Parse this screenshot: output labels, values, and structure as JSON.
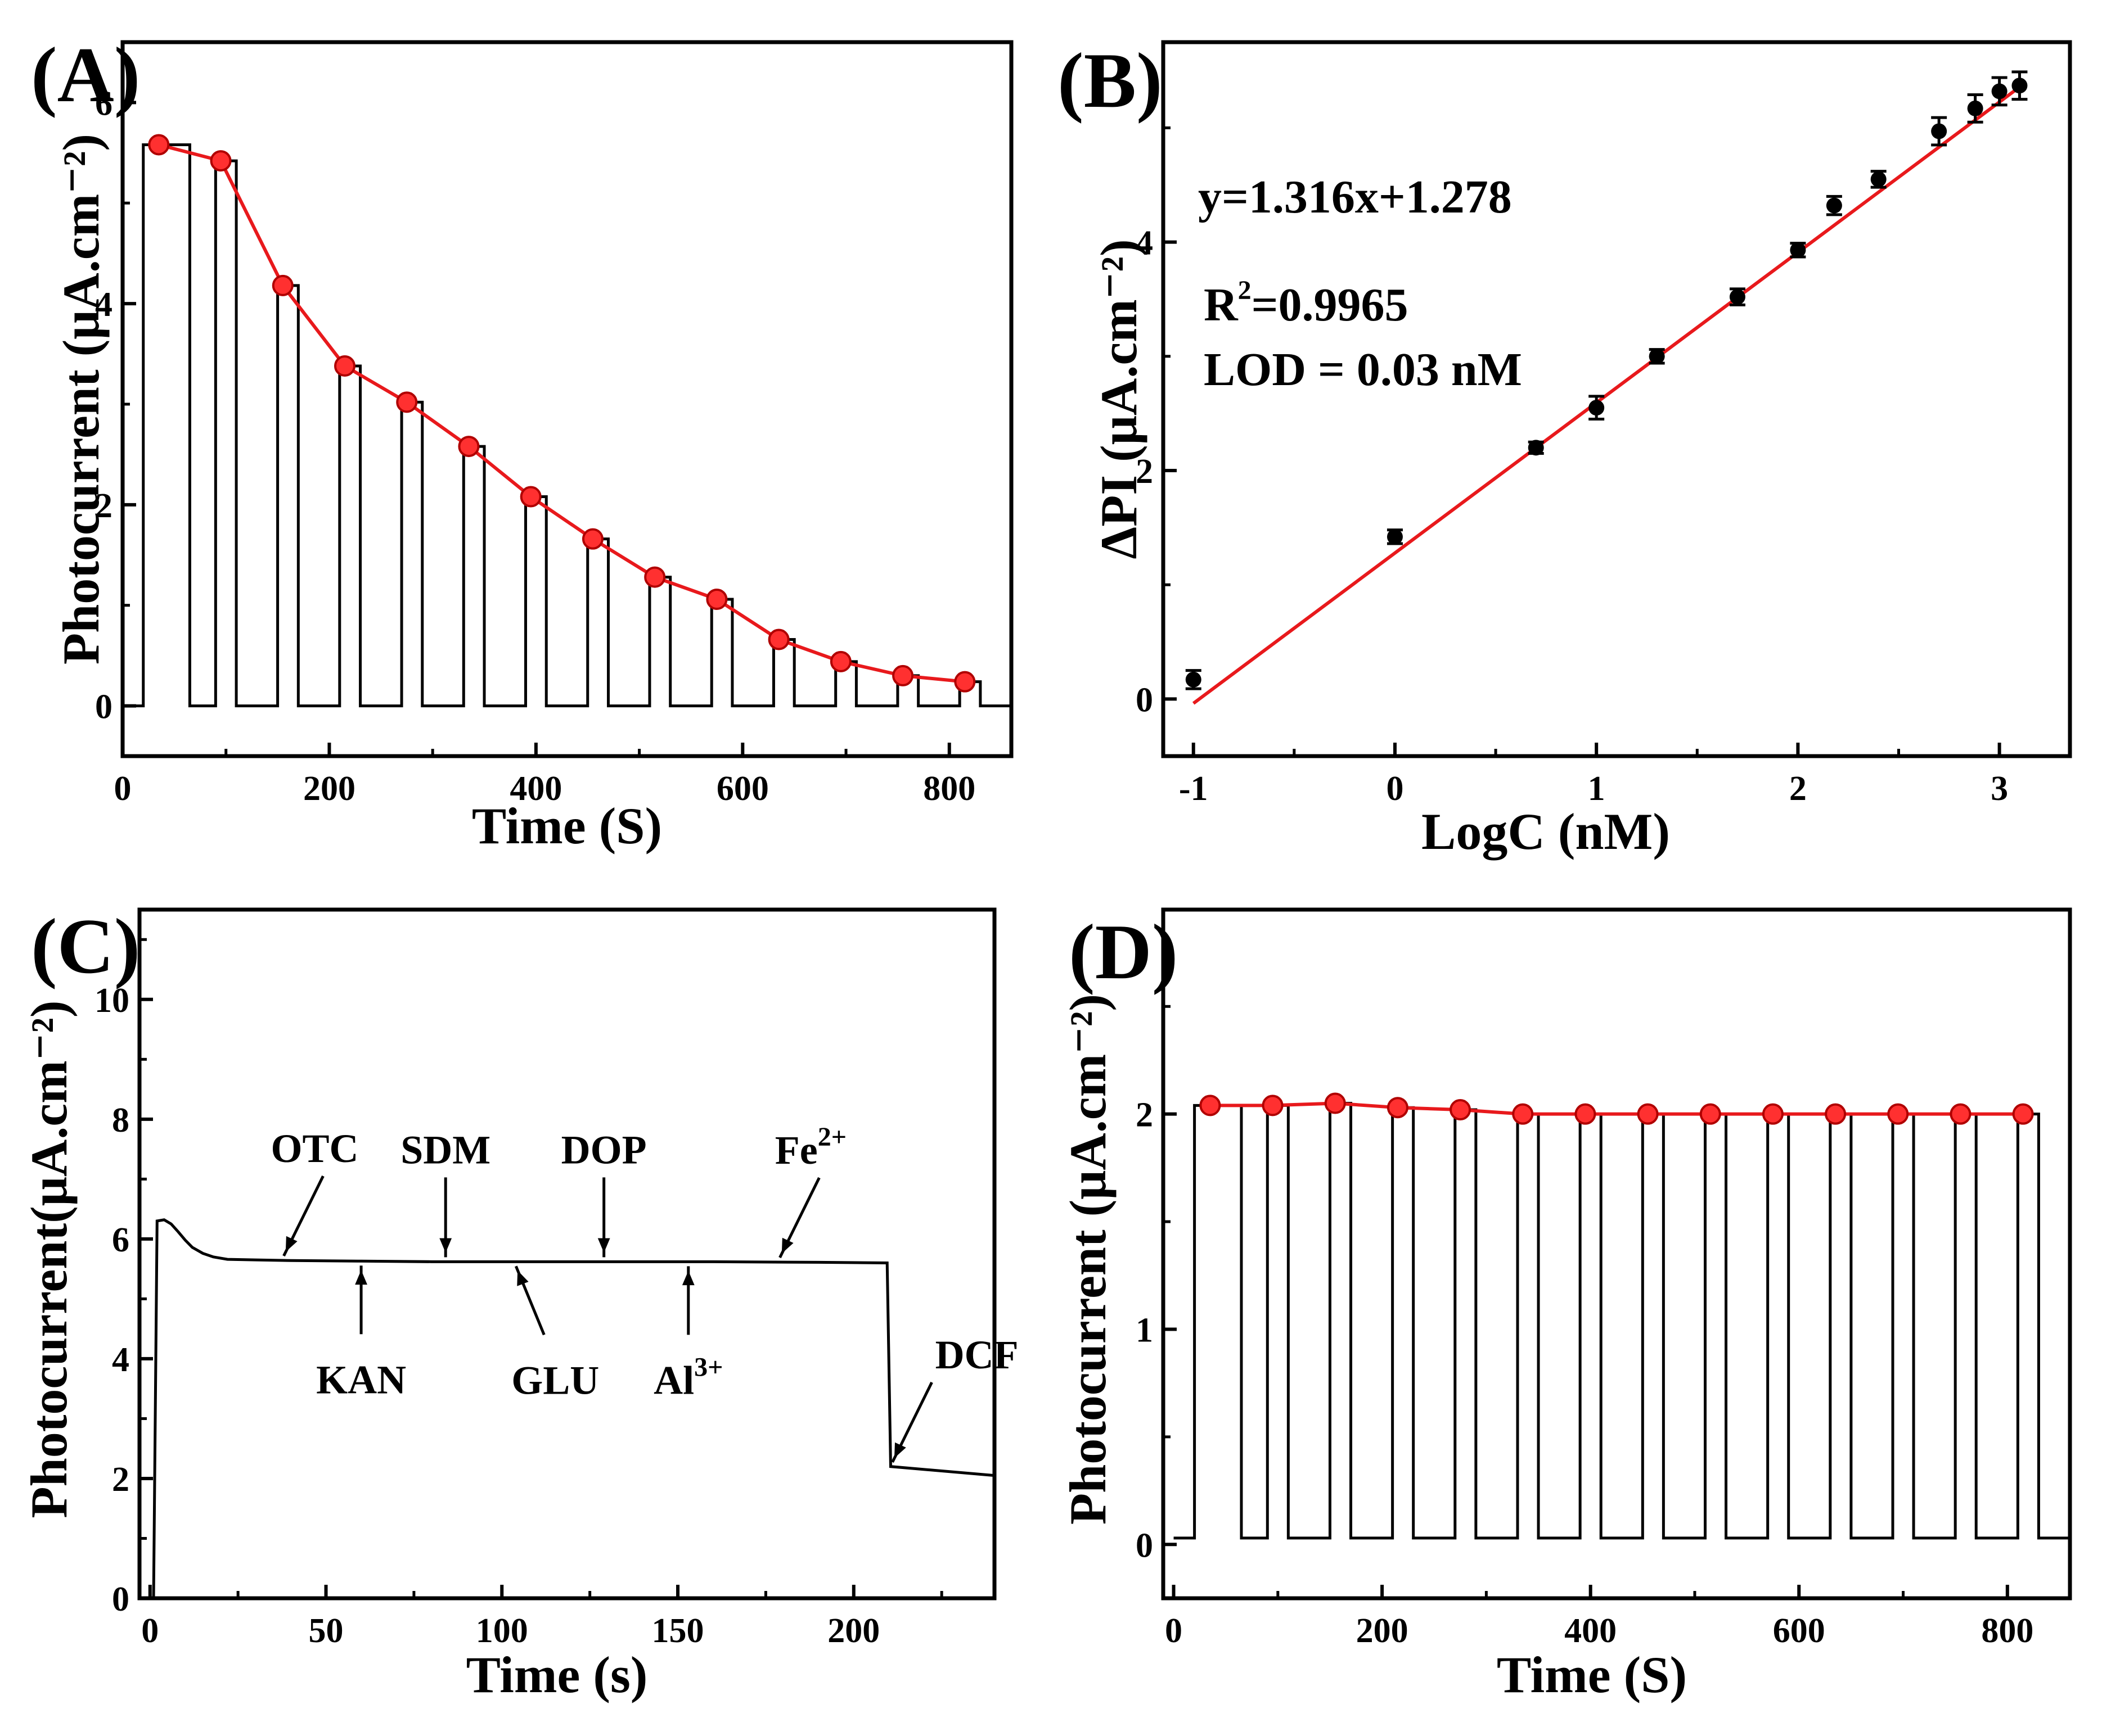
{
  "figure_title": "",
  "colors": {
    "fit": "#e8191c",
    "marker_fill": "#ff3030",
    "axis": "#000000",
    "trace": "#000000"
  },
  "chart_data": [
    {
      "id": "A",
      "panel_label": "(A)",
      "type": "line",
      "title": "",
      "xlabel": "Time (S)",
      "ylabel": "Photocurrent (μA.cm⁻²)",
      "xlim": [
        0,
        860
      ],
      "ylim": [
        -0.5,
        6.6
      ],
      "xticks": [
        0,
        200,
        400,
        600,
        800
      ],
      "xtick_labels": [
        "0",
        "200",
        "400",
        "600",
        "800"
      ],
      "yticks": [
        0,
        2,
        4,
        6
      ],
      "ytick_labels": [
        "0",
        "2",
        "4",
        "6"
      ],
      "trace_profile": "on-off pulses: each pulse rises to the marker value and falls back to ~0",
      "series": [
        {
          "name": "peak photocurrent",
          "x": [
            35,
            95,
            155,
            215,
            275,
            335,
            395,
            455,
            515,
            575,
            635,
            695,
            755,
            815
          ],
          "values": [
            5.58,
            5.42,
            4.18,
            3.38,
            3.02,
            2.58,
            2.08,
            1.66,
            1.28,
            1.06,
            0.66,
            0.44,
            0.3,
            0.24
          ]
        }
      ],
      "pulse_windows": [
        [
          20,
          65
        ],
        [
          90,
          110
        ],
        [
          150,
          170
        ],
        [
          210,
          230
        ],
        [
          270,
          290
        ],
        [
          330,
          350
        ],
        [
          390,
          410
        ],
        [
          450,
          470
        ],
        [
          510,
          530
        ],
        [
          570,
          590
        ],
        [
          630,
          650
        ],
        [
          690,
          710
        ],
        [
          750,
          770
        ],
        [
          810,
          830
        ]
      ]
    },
    {
      "id": "B",
      "panel_label": "(B)",
      "type": "scatter",
      "title": "",
      "xlabel": "LogC (nM)",
      "ylabel": "ΔPI (μA.cm⁻²)",
      "xlim": [
        -1.15,
        3.35
      ],
      "ylim": [
        -0.5,
        5.75
      ],
      "xticks": [
        -1,
        0,
        1,
        2,
        3
      ],
      "xtick_labels": [
        "-1",
        "0",
        "1",
        "2",
        "3"
      ],
      "yticks": [
        0,
        2,
        4
      ],
      "ytick_labels": [
        "0",
        "2",
        "4"
      ],
      "series": [
        {
          "name": "measured",
          "x": [
            -1,
            0,
            0.7,
            1,
            1.3,
            1.7,
            2,
            2.18,
            2.4,
            2.7,
            2.88,
            3,
            3.1
          ],
          "values": [
            0.17,
            1.42,
            2.2,
            2.55,
            3.0,
            3.52,
            3.93,
            4.32,
            4.55,
            4.97,
            5.17,
            5.32,
            5.37
          ],
          "errors": [
            0.08,
            0.06,
            0.05,
            0.1,
            0.06,
            0.07,
            0.06,
            0.08,
            0.07,
            0.12,
            0.12,
            0.12,
            0.12
          ]
        }
      ],
      "fit": {
        "slope": 1.316,
        "intercept": 1.278,
        "x_range": [
          -1,
          3.1
        ]
      },
      "annotations": {
        "equation": "y=1.316x+1.278",
        "r2_base": "R",
        "r2_exp": "2",
        "r2_value": "=0.9965",
        "lod": "LOD = 0.03 nM"
      }
    },
    {
      "id": "C",
      "panel_label": "(C)",
      "type": "line",
      "title": "",
      "xlabel": "Time (s)",
      "ylabel": "Photocurrent(μA.cm⁻²)",
      "xlim": [
        -3,
        240
      ],
      "ylim": [
        0,
        11.5
      ],
      "xticks": [
        0,
        50,
        100,
        150,
        200
      ],
      "xtick_labels": [
        "0",
        "50",
        "100",
        "150",
        "200"
      ],
      "yticks": [
        0,
        2,
        4,
        6,
        8,
        10
      ],
      "ytick_labels": [
        "0",
        "2",
        "4",
        "6",
        "8",
        "10"
      ],
      "series": [
        {
          "name": "photocurrent",
          "x": [
            0,
            1,
            2,
            4,
            6,
            8,
            10,
            12,
            15,
            18,
            22,
            30,
            40,
            60,
            80,
            100,
            130,
            160,
            190,
            209.5,
            210.5,
            240
          ],
          "values": [
            0,
            0,
            6.3,
            6.32,
            6.25,
            6.12,
            5.98,
            5.86,
            5.76,
            5.7,
            5.66,
            5.65,
            5.64,
            5.63,
            5.62,
            5.62,
            5.62,
            5.62,
            5.61,
            5.6,
            2.2,
            2.05
          ]
        }
      ],
      "interferents": [
        {
          "name": "OTC",
          "x": 38,
          "side": "above"
        },
        {
          "name": "KAN",
          "x": 60,
          "side": "below"
        },
        {
          "name": "SDM",
          "x": 84,
          "side": "above"
        },
        {
          "name": "GLU",
          "x": 104,
          "side": "below"
        },
        {
          "name": "DOP",
          "x": 129,
          "side": "above"
        },
        {
          "name": "Al",
          "sup": "3+",
          "x": 153,
          "side": "below"
        },
        {
          "name": "Fe",
          "sup": "2+",
          "x": 179,
          "side": "above"
        },
        {
          "name": "DCF",
          "x": 211,
          "side": "above"
        }
      ]
    },
    {
      "id": "D",
      "panel_label": "(D)",
      "type": "line",
      "title": "",
      "xlabel": "Time (S)",
      "ylabel": "Photocurrent (μA.cm⁻²)",
      "xlim": [
        -10,
        860
      ],
      "ylim": [
        -0.25,
        2.95
      ],
      "xticks": [
        0,
        200,
        400,
        600,
        800
      ],
      "xtick_labels": [
        "0",
        "200",
        "400",
        "600",
        "800"
      ],
      "yticks": [
        0,
        1,
        2
      ],
      "ytick_labels": [
        "0",
        "1",
        "2"
      ],
      "trace_profile": "14 identical on-off pulses, baseline ~0.03",
      "series": [
        {
          "name": "peak photocurrent",
          "x": [
            35,
            95,
            155,
            215,
            275,
            335,
            395,
            455,
            515,
            575,
            635,
            695,
            755,
            815
          ],
          "values": [
            2.04,
            2.04,
            2.05,
            2.03,
            2.02,
            2.0,
            2.0,
            2.0,
            2.0,
            2.0,
            2.0,
            2.0,
            2.0,
            2.0
          ]
        }
      ],
      "pulse_windows": [
        [
          20,
          65
        ],
        [
          90,
          110
        ],
        [
          150,
          170
        ],
        [
          210,
          230
        ],
        [
          270,
          290
        ],
        [
          330,
          350
        ],
        [
          390,
          410
        ],
        [
          450,
          470
        ],
        [
          510,
          530
        ],
        [
          570,
          590
        ],
        [
          630,
          650
        ],
        [
          690,
          710
        ],
        [
          750,
          770
        ],
        [
          810,
          830
        ]
      ]
    }
  ]
}
